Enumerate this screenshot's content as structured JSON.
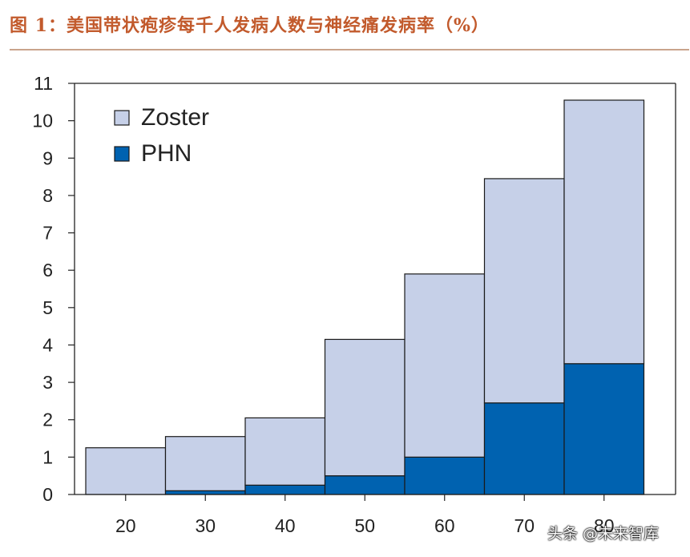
{
  "figure": {
    "title": "图 1：美国带状疱疹每千人发病人数与神经痛发病率（%）"
  },
  "watermark": "头条 @未来智库",
  "colors": {
    "title": "#c25a2c",
    "zoster": "#c6d0e8",
    "phn": "#0062b0",
    "axis": "#222222"
  },
  "chart_data": {
    "type": "bar",
    "stacked": true,
    "categories": [
      "20",
      "30",
      "40",
      "50",
      "60",
      "70",
      "80"
    ],
    "series": [
      {
        "name": "PHN",
        "values": [
          0.0,
          0.1,
          0.25,
          0.5,
          1.0,
          2.45,
          3.5
        ]
      },
      {
        "name": "Zoster",
        "values": [
          1.25,
          1.45,
          1.8,
          3.65,
          4.9,
          6.0,
          7.05
        ]
      }
    ],
    "totals": [
      1.25,
      1.55,
      2.05,
      4.15,
      5.9,
      8.45,
      10.55
    ],
    "ylim": [
      0,
      11
    ],
    "yticks": [
      0,
      1,
      2,
      3,
      4,
      5,
      6,
      7,
      8,
      9,
      10,
      11
    ],
    "legend": {
      "placement": "top-left",
      "entries": [
        "Zoster",
        "PHN"
      ]
    },
    "grid": false
  }
}
